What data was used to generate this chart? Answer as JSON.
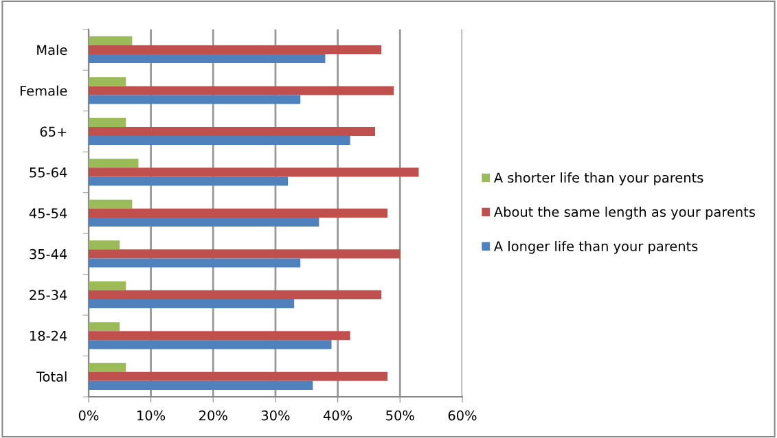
{
  "chart_data": {
    "type": "bar",
    "orientation": "horizontal",
    "categories": [
      "Male",
      "Female",
      "65+",
      "55-64",
      "45-54",
      "35-44",
      "25-34",
      "18-24",
      "Total"
    ],
    "series": [
      {
        "name": "A shorter life than your parents",
        "color": "#9bbb59",
        "values": [
          7,
          6,
          6,
          8,
          7,
          5,
          6,
          5,
          6
        ]
      },
      {
        "name": "About the same length as your parents",
        "color": "#c0504d",
        "values": [
          47,
          49,
          46,
          53,
          48,
          50,
          47,
          42,
          48
        ]
      },
      {
        "name": "A longer life than your parents",
        "color": "#4f81bd",
        "values": [
          38,
          34,
          42,
          32,
          37,
          34,
          33,
          39,
          36
        ]
      }
    ],
    "xlim": [
      0,
      60
    ],
    "xticks": [
      {
        "value": 0,
        "label": "0%"
      },
      {
        "value": 10,
        "label": "10%"
      },
      {
        "value": 20,
        "label": "20%"
      },
      {
        "value": 30,
        "label": "30%"
      },
      {
        "value": 40,
        "label": "40%"
      },
      {
        "value": 50,
        "label": "50%"
      },
      {
        "value": 60,
        "label": "60%"
      }
    ],
    "grid": "x",
    "legend": "right"
  }
}
